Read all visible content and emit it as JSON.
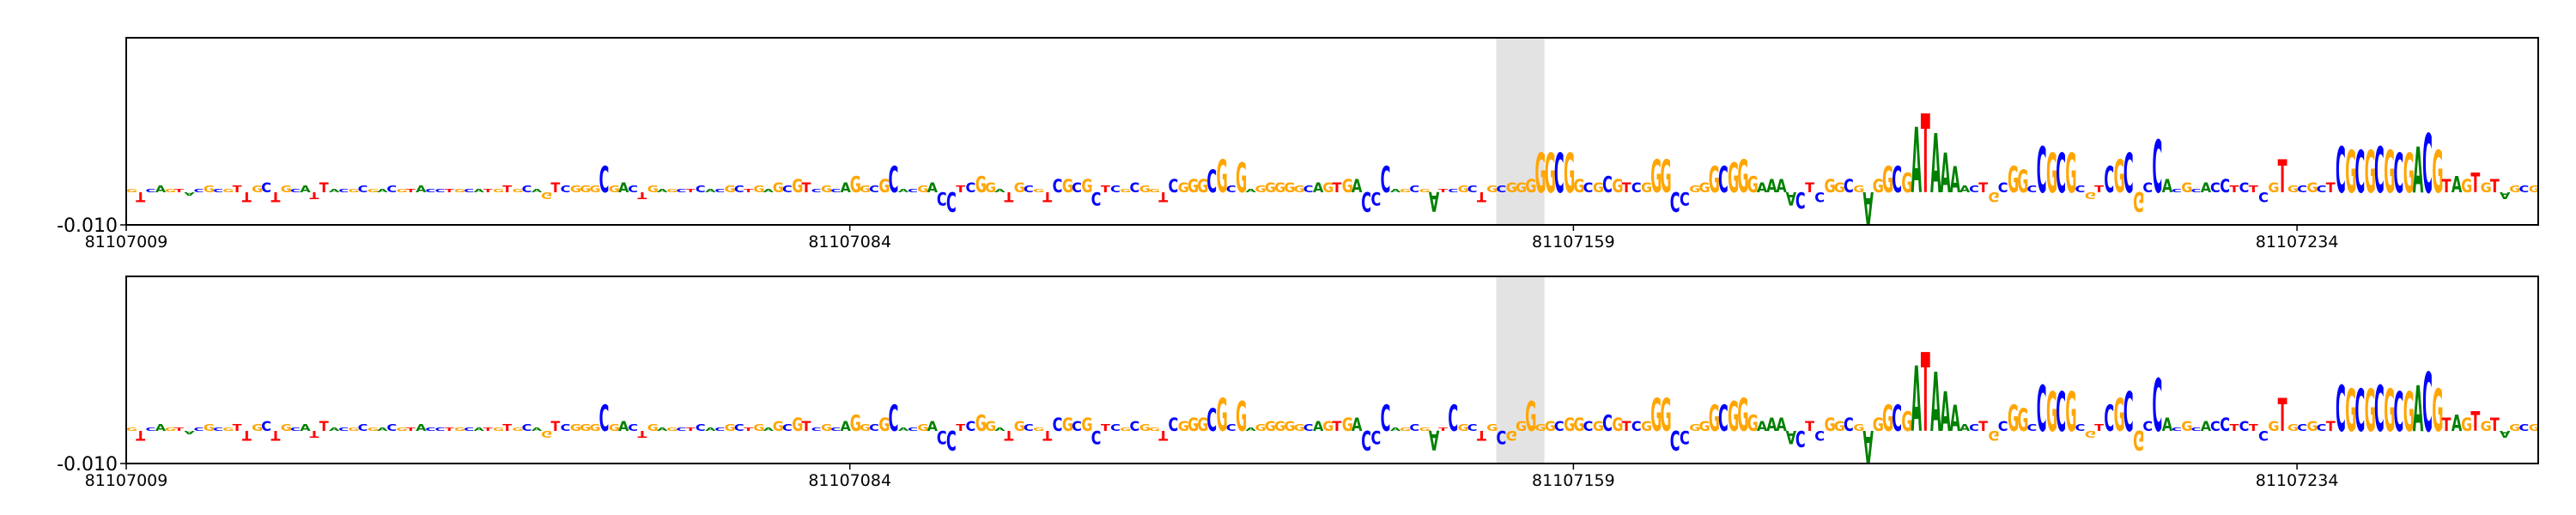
{
  "chart_data": [
    {
      "type": "logo",
      "sequence": "GTCAGTACGCGTTGCTGCATTACGCGACGTACCTGCATGTGCAGTCGGGCGACTGAGCTCACGCTGAGCGTCGCAGGCGCACGACCTCGGATGCGTCGCGCTCGCGGTCGGGCGCGAGGGGGCAGTGACCCAGCGATCGCTGCGGGGGCGGCGCGTCGGGCCGGGCGGGAAAACTCGGCGAGGCGATAAAACTGCGGCCGCGCGTCGCGCCACGCACCTCTCGTGCGCTCGCGCGCGACGTAGTGTAGCG",
      "heights": [
        0.001,
        -0.003,
        0.001,
        0.002,
        0.001,
        0.001,
        -0.001,
        0.001,
        0.002,
        0.001,
        0.001,
        0.002,
        -0.003,
        0.002,
        0.003,
        -0.003,
        0.002,
        0.001,
        0.002,
        -0.002,
        0.003,
        0.001,
        0.001,
        0.001,
        0.002,
        0.001,
        0.001,
        0.002,
        0.001,
        0.001,
        0.002,
        0.001,
        0.001,
        0.001,
        0.001,
        0.001,
        0.001,
        0.001,
        0.001,
        0.002,
        0.001,
        0.002,
        0.001,
        -0.002,
        0.003,
        0.002,
        0.002,
        0.002,
        0.002,
        0.008,
        0.002,
        0.003,
        0.002,
        -0.002,
        0.002,
        0.001,
        0.001,
        0.001,
        0.001,
        0.002,
        0.001,
        0.001,
        0.002,
        0.002,
        0.001,
        0.002,
        0.001,
        0.003,
        0.002,
        0.004,
        0.003,
        0.001,
        0.002,
        0.001,
        0.003,
        0.005,
        0.002,
        0.002,
        0.004,
        0.008,
        0.001,
        0.001,
        0.002,
        0.003,
        -0.004,
        -0.006,
        0.002,
        0.003,
        0.005,
        0.003,
        0.001,
        -0.003,
        0.003,
        0.002,
        0.001,
        -0.003,
        0.004,
        0.004,
        0.003,
        0.004,
        -0.004,
        0.002,
        0.002,
        0.001,
        0.003,
        0.002,
        0.001,
        -0.003,
        0.004,
        0.003,
        0.004,
        0.004,
        0.007,
        0.01,
        0.002,
        0.009,
        0.001,
        0.002,
        0.003,
        0.003,
        0.003,
        0.002,
        0.002,
        0.003,
        0.003,
        0.003,
        0.004,
        0.004,
        -0.006,
        -0.004,
        0.008,
        0.001,
        0.001,
        0.002,
        0.001,
        -0.006,
        0.001,
        0.001,
        0.002,
        0.002,
        -0.003,
        0.002,
        0.002,
        0.003,
        0.003,
        0.004,
        0.012,
        0.012,
        0.012,
        0.012,
        0.004,
        0.003,
        0.003,
        0.005,
        0.004,
        0.003,
        0.003,
        0.003,
        0.01,
        0.01,
        -0.006,
        -0.004,
        0.002,
        0.003,
        0.008,
        0.008,
        0.009,
        0.01,
        0.005,
        0.003,
        0.004,
        0.004,
        -0.004,
        -0.005,
        0.003,
        -0.003,
        0.004,
        0.003,
        0.004,
        0.002,
        -0.01,
        0.004,
        0.008,
        0.008,
        0.006,
        0.02,
        0.024,
        0.018,
        0.012,
        0.008,
        0.002,
        0.002,
        0.003,
        -0.003,
        0.003,
        0.008,
        0.007,
        0.002,
        0.014,
        0.012,
        0.012,
        0.012,
        0.002,
        -0.002,
        0.002,
        0.008,
        0.01,
        0.012,
        -0.006,
        0.003,
        0.016,
        0.004,
        0.001,
        0.003,
        0.001,
        0.003,
        0.003,
        0.004,
        0.002,
        0.003,
        0.002,
        -0.003,
        0.003,
        0.01,
        0.002,
        0.002,
        0.003,
        0.002,
        0.003,
        0.014,
        0.013,
        0.013,
        0.013,
        0.014,
        0.013,
        0.012,
        0.012,
        0.014,
        0.018,
        0.013,
        0.004,
        0.005,
        0.004,
        0.006,
        0.003,
        0.004,
        -0.002,
        0.002,
        0.002,
        0.002
      ],
      "colors": {
        "A": "#008000",
        "C": "#0000ff",
        "G": "#ffa500",
        "T": "#ff0000"
      },
      "highlight": [
        81107151,
        81107156
      ],
      "xlim": [
        81107009,
        81107259
      ],
      "xticks": [
        81107009,
        81107084,
        81107159,
        81107234
      ],
      "ylim": [
        -0.01,
        0.047
      ],
      "yticks": [
        {
          "value": -0.01,
          "label": "-0.010"
        }
      ]
    },
    {
      "type": "logo",
      "sequence": "GTCAGTACGCGTTGCTGCATTACGCGACGTACCTGCATGTGCAGTCGGGCGACTGAGCTCACGCTGAGCGTCGCAGGCGCACGACCTCGGATGCGTCGCGCTCGCGGTCGGGCGCGAGGGGGCAGTGACCCAGCGATCGCTGCGGGGGCGGCGCGTCGGGCCGGGCGGGAAAACTCGGCGAGGCGATAAAACTGCGGCCGCGCGTCGCGCCACGCACCTCTCGTGCGCTCGCGCGCGACGTAGTGTAGCG",
      "heights": [
        0.001,
        -0.003,
        0.001,
        0.002,
        0.001,
        0.001,
        -0.001,
        0.001,
        0.002,
        0.001,
        0.001,
        0.002,
        -0.003,
        0.002,
        0.003,
        -0.003,
        0.002,
        0.001,
        0.002,
        -0.002,
        0.003,
        0.001,
        0.001,
        0.001,
        0.002,
        0.001,
        0.001,
        0.002,
        0.001,
        0.001,
        0.002,
        0.001,
        0.001,
        0.001,
        0.001,
        0.001,
        0.001,
        0.001,
        0.001,
        0.002,
        0.001,
        0.002,
        0.001,
        -0.002,
        0.003,
        0.002,
        0.002,
        0.002,
        0.002,
        0.008,
        0.002,
        0.003,
        0.002,
        -0.002,
        0.002,
        0.001,
        0.001,
        0.001,
        0.001,
        0.002,
        0.001,
        0.001,
        0.002,
        0.002,
        0.001,
        0.002,
        0.001,
        0.003,
        0.002,
        0.004,
        0.003,
        0.001,
        0.002,
        0.001,
        0.003,
        0.005,
        0.002,
        0.002,
        0.004,
        0.008,
        0.001,
        0.001,
        0.002,
        0.003,
        -0.004,
        -0.006,
        0.002,
        0.003,
        0.005,
        0.003,
        0.001,
        -0.003,
        0.003,
        0.002,
        0.001,
        -0.003,
        0.004,
        0.004,
        0.003,
        0.004,
        -0.004,
        0.002,
        0.002,
        0.001,
        0.003,
        0.002,
        0.001,
        -0.003,
        0.004,
        0.003,
        0.004,
        0.004,
        0.007,
        0.01,
        0.002,
        0.009,
        0.001,
        0.002,
        0.003,
        0.003,
        0.003,
        0.002,
        0.002,
        0.003,
        0.003,
        0.003,
        0.004,
        0.004,
        -0.006,
        -0.004,
        0.008,
        0.001,
        0.001,
        0.002,
        0.001,
        -0.006,
        0.001,
        0.008,
        0.002,
        0.002,
        -0.003,
        0.002,
        -0.004,
        -0.003,
        0.003,
        0.009,
        0.002,
        0.003,
        0.003,
        0.004,
        0.004,
        0.003,
        0.003,
        0.005,
        0.004,
        0.003,
        0.003,
        0.003,
        0.01,
        0.01,
        -0.006,
        -0.004,
        0.002,
        0.003,
        0.008,
        0.008,
        0.009,
        0.01,
        0.005,
        0.003,
        0.004,
        0.004,
        -0.004,
        -0.005,
        0.003,
        -0.003,
        0.004,
        0.003,
        0.004,
        0.002,
        -0.01,
        0.004,
        0.008,
        0.008,
        0.006,
        0.02,
        0.024,
        0.018,
        0.012,
        0.008,
        0.002,
        0.002,
        0.003,
        -0.003,
        0.003,
        0.008,
        0.007,
        0.002,
        0.014,
        0.012,
        0.012,
        0.012,
        0.002,
        -0.002,
        0.002,
        0.008,
        0.01,
        0.012,
        -0.006,
        0.003,
        0.016,
        0.004,
        0.001,
        0.003,
        0.001,
        0.003,
        0.003,
        0.004,
        0.002,
        0.003,
        0.002,
        -0.003,
        0.003,
        0.01,
        0.002,
        0.002,
        0.003,
        0.002,
        0.003,
        0.014,
        0.013,
        0.013,
        0.013,
        0.014,
        0.013,
        0.012,
        0.012,
        0.014,
        0.018,
        0.013,
        0.004,
        0.005,
        0.004,
        0.006,
        0.003,
        0.004,
        -0.002,
        0.002,
        0.002,
        0.002
      ],
      "colors": {
        "A": "#008000",
        "C": "#0000ff",
        "G": "#ffa500",
        "T": "#ff0000"
      },
      "highlight": [
        81107151,
        81107156
      ],
      "xlim": [
        81107009,
        81107259
      ],
      "xticks": [
        81107009,
        81107084,
        81107159,
        81107234
      ],
      "ylim": [
        -0.01,
        0.047
      ],
      "yticks": [
        {
          "value": -0.01,
          "label": "-0.010"
        }
      ]
    }
  ]
}
